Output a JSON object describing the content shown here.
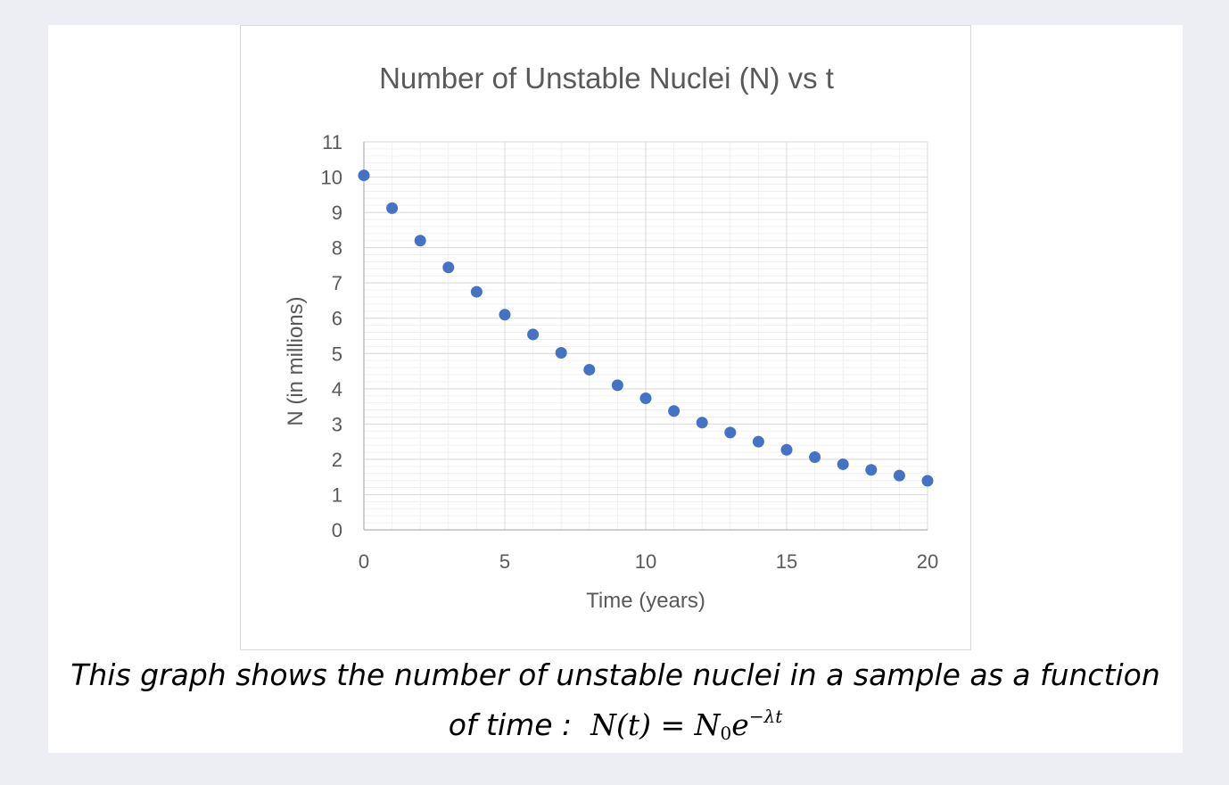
{
  "caption": {
    "line1": "This graph shows the number of unstable nuclei in a sample as a function",
    "line2_prefix": "of time :",
    "formula_lhs": "N(t) = ",
    "formula_N": "N",
    "formula_sub": "0",
    "formula_e": "e",
    "formula_exp": "−λt"
  },
  "chart_data": {
    "type": "scatter",
    "title": "Number of Unstable Nuclei (N) vs t",
    "xlabel": "Time (years)",
    "ylabel": "N (in millions)",
    "xlim": [
      0,
      20
    ],
    "ylim": [
      0,
      11
    ],
    "x_ticks": [
      "0",
      "5",
      "10",
      "15",
      "20"
    ],
    "y_ticks": [
      "0",
      "1",
      "2",
      "3",
      "4",
      "5",
      "6",
      "7",
      "8",
      "9",
      "10",
      "11"
    ],
    "grid": true,
    "marker_color": "#4472c4",
    "series": [
      {
        "x": [
          0,
          1,
          2,
          3,
          4,
          5,
          6,
          7,
          8,
          9,
          10,
          11,
          12,
          13,
          14,
          15,
          16,
          17,
          18,
          19,
          20
        ],
        "y": [
          10.05,
          9.12,
          8.2,
          7.44,
          6.75,
          6.1,
          5.54,
          5.02,
          4.54,
          4.1,
          3.73,
          3.37,
          3.04,
          2.76,
          2.5,
          2.27,
          2.06,
          1.86,
          1.7,
          1.54,
          1.39
        ]
      }
    ]
  }
}
